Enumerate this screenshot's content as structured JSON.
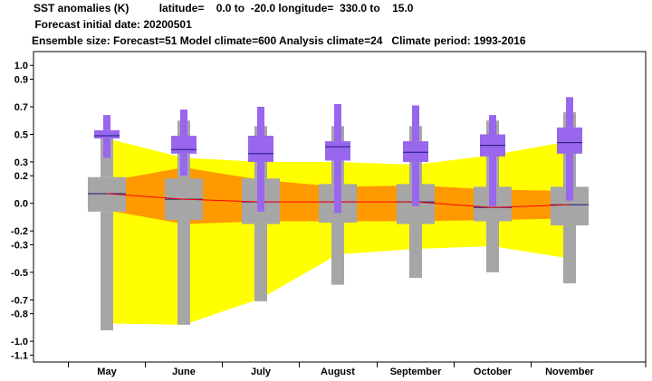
{
  "header": {
    "line1": "SST anomalies (K)          latitude=    0.0 to  -20.0 longitude=  330.0 to    15.0",
    "line2": " Forecast initial date: 20200501",
    "line3": "Ensemble size: Forecast=51 Model climate=600 Analysis climate=24   Climate period: 1993-2016"
  },
  "chart_data": {
    "type": "box",
    "title": "SST anomalies (K)",
    "ylim": [
      -1.15,
      1.1
    ],
    "yticks": [
      "1.0",
      "0.9",
      "0.7",
      "0.5",
      "0.3",
      "0.2",
      "0.0",
      "-0.2",
      "-0.3",
      "-0.5",
      "-0.7",
      "-0.8",
      "-1.0",
      "-1.1"
    ],
    "categories": [
      "May",
      "June",
      "July",
      "August",
      "September",
      "October",
      "November"
    ],
    "climate_bands": {
      "yellow_band": {
        "low": [
          -0.87,
          -0.88,
          -0.69,
          -0.37,
          -0.33,
          -0.31,
          -0.4
        ],
        "high": [
          0.47,
          0.33,
          0.3,
          0.3,
          0.28,
          0.35,
          0.45
        ]
      },
      "orange_band": {
        "low": [
          -0.05,
          -0.15,
          -0.13,
          -0.13,
          -0.13,
          -0.12,
          -0.11
        ],
        "high": [
          0.16,
          0.26,
          0.17,
          0.12,
          0.13,
          0.1,
          0.09
        ]
      }
    },
    "model_climate_boxes": {
      "whisker_low": [
        -0.92,
        -0.88,
        -0.71,
        -0.59,
        -0.54,
        -0.5,
        -0.58
      ],
      "q25": [
        -0.06,
        -0.12,
        -0.15,
        -0.14,
        -0.15,
        -0.13,
        -0.16
      ],
      "q75": [
        0.19,
        0.18,
        0.18,
        0.14,
        0.14,
        0.12,
        0.12
      ],
      "whisker_high": [
        0.5,
        0.6,
        0.56,
        0.56,
        0.56,
        0.6,
        0.66
      ],
      "median": [
        0.07,
        0.03,
        0.01,
        0.01,
        0.01,
        -0.03,
        -0.01
      ]
    },
    "forecast_boxes": {
      "whisker_low": [
        0.33,
        0.2,
        -0.06,
        -0.07,
        -0.02,
        -0.02,
        0.02
      ],
      "q25": [
        0.47,
        0.36,
        0.3,
        0.31,
        0.3,
        0.34,
        0.36
      ],
      "q75": [
        0.53,
        0.49,
        0.49,
        0.45,
        0.45,
        0.5,
        0.55
      ],
      "whisker_high": [
        0.64,
        0.68,
        0.7,
        0.72,
        0.71,
        0.64,
        0.77
      ],
      "median": [
        0.49,
        0.39,
        0.36,
        0.41,
        0.37,
        0.42,
        0.44
      ]
    },
    "analysis_line": [
      0.07,
      0.03,
      0.01,
      0.01,
      0.01,
      -0.03,
      -0.01
    ],
    "colors": {
      "yellow_band": "#ffff00",
      "orange_band": "#ff9900",
      "model_box": "#a6a6a6",
      "forecast_box": "#9966ee",
      "median": "#1a1a7a",
      "analysis_line": "#ff0000"
    }
  }
}
